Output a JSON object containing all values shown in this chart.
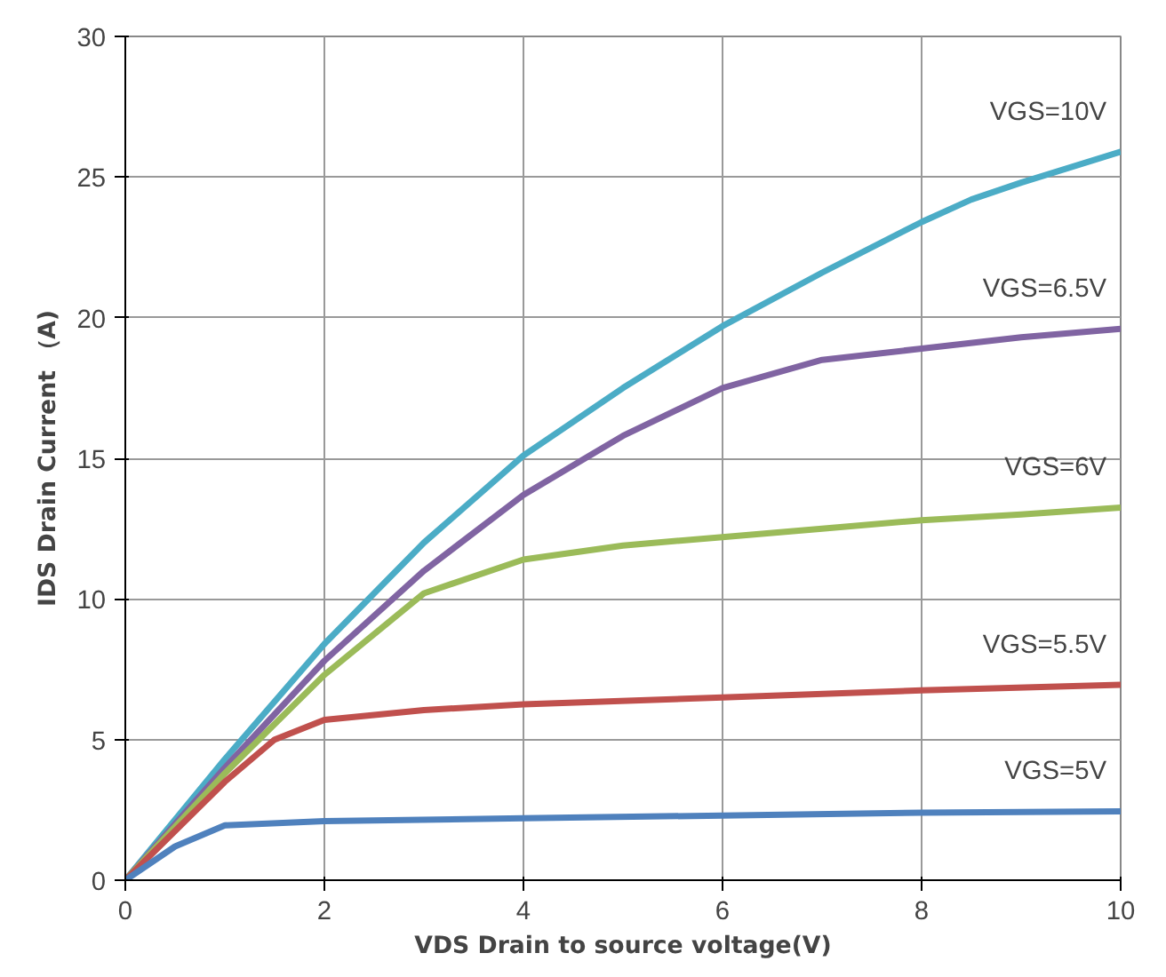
{
  "chart_data": {
    "type": "line",
    "xlabel": "VDS Drain to source voltage(V)",
    "ylabel": "IDS Drain Current （A)",
    "xlim": [
      0,
      10
    ],
    "ylim": [
      0,
      30
    ],
    "xticks": [
      0,
      2,
      4,
      6,
      8,
      10
    ],
    "yticks": [
      0,
      5,
      10,
      15,
      20,
      25,
      30
    ],
    "grid": true,
    "marker": "none",
    "line_style": "solid",
    "series": [
      {
        "name": "VGS=10V",
        "color": "#4bacc6",
        "x": [
          0,
          1,
          2,
          3,
          4,
          5,
          6,
          7,
          8,
          8.5,
          9,
          10
        ],
        "values": [
          0,
          4.3,
          8.4,
          12,
          15.1,
          17.5,
          19.7,
          21.6,
          23.4,
          24.2,
          24.8,
          25.9
        ]
      },
      {
        "name": "VGS=6.5V",
        "color": "#8064a2",
        "x": [
          0,
          1,
          2,
          3,
          4,
          5,
          6,
          7,
          8,
          9,
          10
        ],
        "values": [
          0,
          4,
          7.8,
          11,
          13.7,
          15.8,
          17.5,
          18.5,
          18.9,
          19.3,
          19.6
        ]
      },
      {
        "name": "VGS=6V",
        "color": "#9bbb59",
        "x": [
          0,
          1,
          2,
          3,
          4,
          5,
          6,
          7,
          8,
          9,
          10
        ],
        "values": [
          0,
          3.8,
          7.3,
          10.2,
          11.4,
          11.9,
          12.2,
          12.5,
          12.8,
          13,
          13.25
        ]
      },
      {
        "name": "VGS=5.5V",
        "color": "#c0504d",
        "x": [
          0,
          1,
          1.5,
          2,
          3,
          4,
          6,
          8,
          10
        ],
        "values": [
          0,
          3.5,
          5,
          5.7,
          6.05,
          6.25,
          6.5,
          6.75,
          6.95
        ]
      },
      {
        "name": "VGS=5V",
        "color": "#4f81bd",
        "x": [
          0,
          0.5,
          1,
          2,
          4,
          6,
          8,
          10
        ],
        "values": [
          0,
          1.2,
          1.95,
          2.1,
          2.2,
          2.3,
          2.4,
          2.45
        ]
      }
    ]
  }
}
